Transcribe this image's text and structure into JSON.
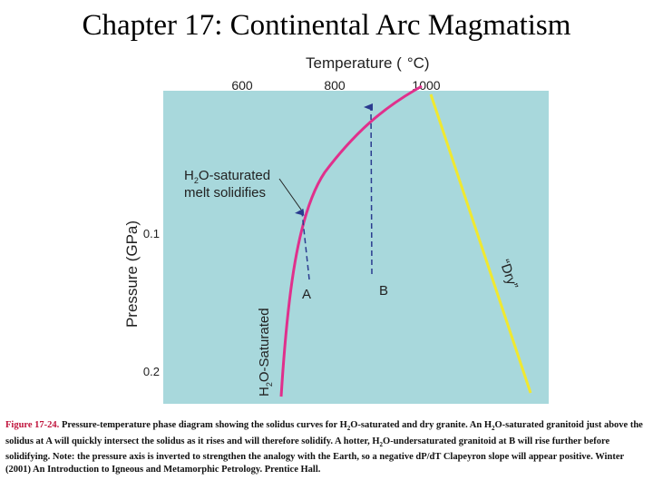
{
  "slide": {
    "title": "Chapter 17: Continental Arc Magmatism"
  },
  "colors": {
    "panel": "#a8d8dc",
    "wet_solidus": "#e0308c",
    "dry_solidus": "#f0e830",
    "arrows": "#2a3b8f"
  },
  "diagram": {
    "temperature_axis": {
      "label_main": "Temperature (",
      "label_unit": "°C)",
      "ticks": [
        "600",
        "800",
        "1000"
      ]
    },
    "pressure_axis": {
      "label": "Pressure (GPa)",
      "ticks": [
        "0.1",
        "0.2"
      ]
    },
    "wet_curve_label": {
      "h": "H",
      "sub": "2",
      "rest": "O-Saturated"
    },
    "dry_curve_label": "“Dry”",
    "callout": {
      "line1_h": "H",
      "line1_sub": "2",
      "line1_rest": "O-saturated",
      "line2": "melt solidifies"
    },
    "points": {
      "a": "A",
      "b": "B"
    }
  },
  "caption": {
    "figure_number": "Figure 17-24.",
    "part1": " Pressure-temperature phase diagram showing the solidus curves for H",
    "sub1": "2",
    "part2": "O-saturated and dry granite. An H",
    "sub2": "2",
    "part3": "O-saturated granitoid just above the solidus at A will quickly intersect the solidus as it rises and will therefore solidify. A hotter, H",
    "sub3": "2",
    "part4": "O-undersaturated granitoid at B will rise further before solidifying. Note: the pressure axis is inverted to strengthen the analogy with the Earth, so a negative dP/dT Clapeyron slope will appear positive.   Winter (2001) An Introduction to Igneous and Metamorphic Petrology. Prentice Hall."
  }
}
